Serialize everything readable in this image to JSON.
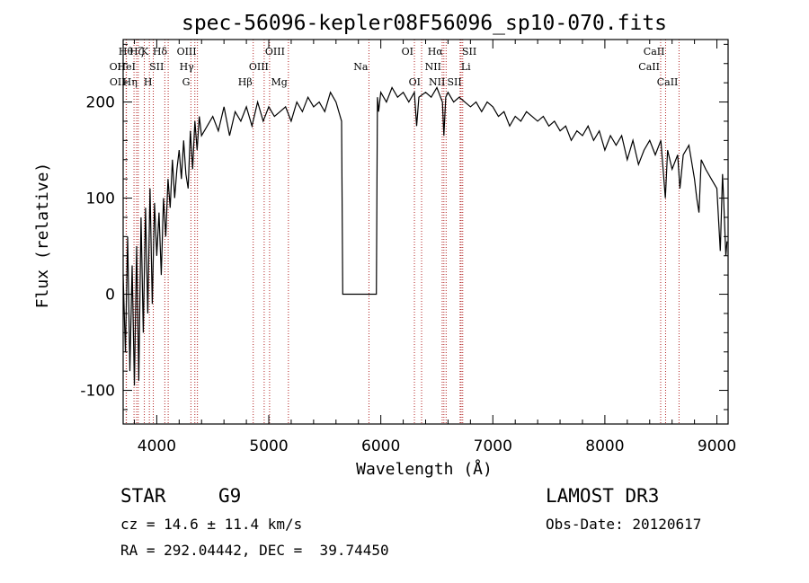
{
  "chart_data": {
    "type": "line",
    "title": "spec-56096-kepler08F56096_sp10-070.fits",
    "xlabel": "Wavelength (Å)",
    "ylabel": "Flux (relative)",
    "xlim": [
      3700,
      9100
    ],
    "ylim": [
      -135,
      265
    ],
    "xticks": [
      4000,
      5000,
      6000,
      7000,
      8000,
      9000
    ],
    "yticks": [
      -100,
      0,
      100,
      200
    ],
    "spectrum": {
      "name": "flux",
      "x": [
        3700,
        3720,
        3740,
        3760,
        3780,
        3800,
        3820,
        3840,
        3860,
        3880,
        3900,
        3920,
        3940,
        3960,
        3980,
        4000,
        4020,
        4040,
        4060,
        4080,
        4100,
        4120,
        4140,
        4160,
        4180,
        4200,
        4220,
        4240,
        4260,
        4280,
        4300,
        4320,
        4340,
        4360,
        4380,
        4400,
        4450,
        4500,
        4550,
        4600,
        4650,
        4700,
        4750,
        4800,
        4850,
        4900,
        4950,
        5000,
        5050,
        5100,
        5150,
        5200,
        5250,
        5300,
        5350,
        5400,
        5450,
        5500,
        5550,
        5600,
        5650,
        5660,
        5670,
        5700,
        5800,
        5900,
        5960,
        5970,
        5980,
        6000,
        6050,
        6100,
        6150,
        6200,
        6250,
        6300,
        6320,
        6340,
        6400,
        6450,
        6500,
        6550,
        6563,
        6580,
        6600,
        6650,
        6700,
        6750,
        6800,
        6850,
        6900,
        6950,
        7000,
        7050,
        7100,
        7150,
        7200,
        7250,
        7300,
        7350,
        7400,
        7450,
        7500,
        7550,
        7600,
        7650,
        7700,
        7750,
        7800,
        7850,
        7900,
        7950,
        8000,
        8050,
        8100,
        8150,
        8200,
        8250,
        8300,
        8350,
        8400,
        8450,
        8500,
        8540,
        8560,
        8600,
        8650,
        8670,
        8700,
        8750,
        8800,
        8820,
        8840,
        8860,
        8900,
        8950,
        9000,
        9030,
        9050,
        9060,
        9080,
        9090
      ],
      "y": [
        20,
        -60,
        60,
        -80,
        30,
        -95,
        50,
        -90,
        80,
        -40,
        90,
        -20,
        110,
        -10,
        95,
        40,
        85,
        20,
        100,
        60,
        120,
        90,
        140,
        100,
        130,
        150,
        120,
        160,
        125,
        110,
        170,
        130,
        180,
        150,
        185,
        165,
        175,
        185,
        170,
        195,
        165,
        190,
        180,
        195,
        175,
        200,
        180,
        195,
        185,
        190,
        195,
        180,
        200,
        190,
        205,
        195,
        200,
        190,
        210,
        200,
        180,
        0,
        0,
        0,
        0,
        0,
        0,
        205,
        190,
        210,
        200,
        215,
        205,
        210,
        200,
        210,
        175,
        205,
        210,
        205,
        215,
        200,
        165,
        205,
        210,
        200,
        205,
        200,
        195,
        200,
        190,
        200,
        195,
        185,
        190,
        175,
        185,
        180,
        190,
        185,
        180,
        185,
        175,
        180,
        170,
        175,
        160,
        170,
        165,
        175,
        160,
        170,
        150,
        165,
        155,
        165,
        140,
        160,
        135,
        150,
        160,
        145,
        160,
        100,
        150,
        130,
        145,
        110,
        145,
        155,
        120,
        100,
        85,
        140,
        130,
        120,
        110,
        45,
        125,
        100,
        40,
        55
      ],
      "color": "#000000"
    },
    "lines": [
      {
        "label": "Hθ",
        "wave": 3797,
        "row": 0,
        "side": "left"
      },
      {
        "label": "OII",
        "wave": 3727,
        "row": 1,
        "side": "left"
      },
      {
        "label": "OII",
        "wave": 3729,
        "row": 2,
        "side": "left"
      },
      {
        "label": "HeI",
        "wave": 3820,
        "row": 1,
        "side": "left"
      },
      {
        "label": "Hη",
        "wave": 3835,
        "row": 2,
        "side": "left"
      },
      {
        "label": "Hζ",
        "wave": 3889,
        "row": 0,
        "side": "left"
      },
      {
        "label": "K",
        "wave": 3934,
        "row": 0,
        "side": "left"
      },
      {
        "label": "SII",
        "wave": 4072,
        "row": 1,
        "side": "left"
      },
      {
        "label": "H",
        "wave": 3969,
        "row": 2,
        "side": "left"
      },
      {
        "label": "Hδ",
        "wave": 4102,
        "row": 0,
        "side": "left"
      },
      {
        "label": "OIII",
        "wave": 4363,
        "row": 0,
        "side": "left"
      },
      {
        "label": "Hγ",
        "wave": 4340,
        "row": 1,
        "side": "left"
      },
      {
        "label": "G",
        "wave": 4305,
        "row": 2,
        "side": "left"
      },
      {
        "label": "OIII",
        "wave": 4959,
        "row": 0,
        "side": "right"
      },
      {
        "label": "OIII",
        "wave": 5007,
        "row": 1,
        "side": "left"
      },
      {
        "label": "Hβ",
        "wave": 4861,
        "row": 2,
        "side": "left"
      },
      {
        "label": "Mg",
        "wave": 5175,
        "row": 2,
        "side": "left"
      },
      {
        "label": "Na",
        "wave": 5894,
        "row": 1,
        "side": "left"
      },
      {
        "label": "OI",
        "wave": 6300,
        "row": 0,
        "side": "left"
      },
      {
        "label": "OI",
        "wave": 6364,
        "row": 2,
        "side": "left"
      },
      {
        "label": "Hα",
        "wave": 6563,
        "row": 0,
        "side": "left"
      },
      {
        "label": "SII",
        "wave": 6717,
        "row": 0,
        "side": "right"
      },
      {
        "label": "NII",
        "wave": 6548,
        "row": 1,
        "side": "left"
      },
      {
        "label": "Li",
        "wave": 6708,
        "row": 1,
        "side": "right"
      },
      {
        "label": "NII",
        "wave": 6583,
        "row": 2,
        "side": "left"
      },
      {
        "label": "SII",
        "wave": 6731,
        "row": 2,
        "side": "left"
      },
      {
        "label": "CaII",
        "wave": 8542,
        "row": 0,
        "side": "left"
      },
      {
        "label": "CaII",
        "wave": 8498,
        "row": 1,
        "side": "left"
      },
      {
        "label": "CaII",
        "wave": 8662,
        "row": 2,
        "side": "left"
      }
    ],
    "colors": {
      "axes": "#000000",
      "line_markers": "#b22222"
    }
  },
  "info": {
    "object_class": "STAR",
    "subclass": "G9",
    "survey": "LAMOST DR3",
    "cz": "cz = 14.6 ± 11.4 km/s",
    "obs_date": "Obs-Date: 20120617",
    "coords": "RA = 292.04442, DEC =  39.74450"
  }
}
